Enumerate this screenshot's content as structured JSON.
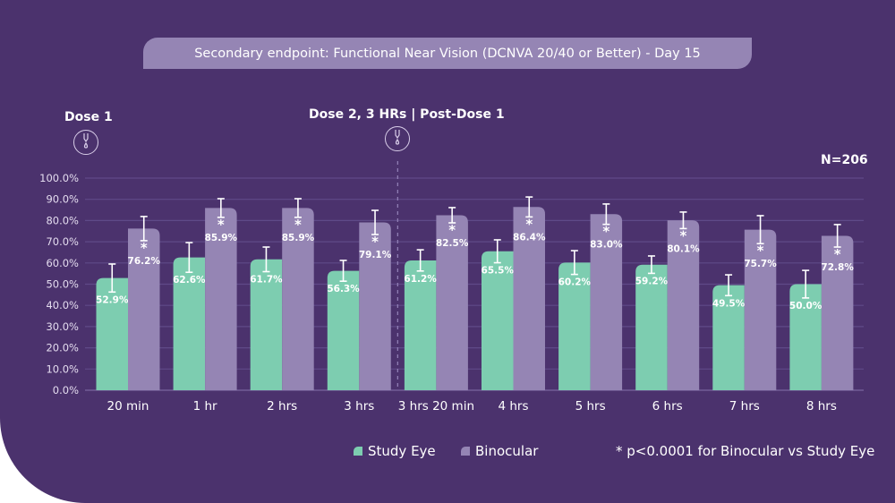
{
  "title": "Secondary endpoint: Functional Near Vision (DCNVA 20/40 or Better) - Day 15",
  "annotations": {
    "dose1": "Dose 1",
    "dose2": "Dose 2, 3 HRs | Post-Dose 1",
    "n": "N=206",
    "footnote": "* p<0.0001 for Binocular vs Study Eye",
    "significance_marker": "*"
  },
  "icons": [
    "eye-drop-icon",
    "eye-drop-icon"
  ],
  "colors": {
    "background": "#4b326d",
    "study_eye": "#7dcdb0",
    "binocular": "#9585b4",
    "title_bar": "#9585b4"
  },
  "chart_data": {
    "type": "bar",
    "categories": [
      "20 min",
      "1 hr",
      "2 hrs",
      "3 hrs",
      "3 hrs 20 min",
      "4 hrs",
      "5 hrs",
      "6 hrs",
      "7 hrs",
      "8 hrs"
    ],
    "series": [
      {
        "name": "Study Eye",
        "values": [
          52.9,
          62.6,
          61.7,
          56.3,
          61.2,
          65.5,
          60.2,
          59.2,
          49.5,
          50.0
        ],
        "error_upper": [
          59.5,
          69.6,
          67.5,
          61.2,
          66.2,
          70.9,
          65.8,
          63.3,
          54.4,
          56.5
        ],
        "labels": [
          "52.9%",
          "62.6%",
          "61.7%",
          "56.3%",
          "61.2%",
          "65.5%",
          "60.2%",
          "59.2%",
          "49.5%",
          "50.0%"
        ]
      },
      {
        "name": "Binocular",
        "values": [
          76.2,
          85.9,
          85.9,
          79.1,
          82.5,
          86.4,
          83.0,
          80.1,
          75.7,
          72.8
        ],
        "error_upper": [
          81.9,
          90.3,
          90.3,
          84.8,
          86.1,
          91.1,
          87.8,
          84.0,
          82.3,
          78.1
        ],
        "labels": [
          "76.2%",
          "85.9%",
          "85.9%",
          "79.1%",
          "82.5%",
          "86.4%",
          "83.0%",
          "80.1%",
          "75.7%",
          "72.8%"
        ]
      }
    ],
    "ylim": [
      0,
      100
    ],
    "yticks": [
      "0.0%",
      "10.0%",
      "20.0%",
      "30.0%",
      "40.0%",
      "50.0%",
      "60.0%",
      "70.0%",
      "80.0%",
      "90.0%",
      "100.0%"
    ],
    "grid": true,
    "divider_after_category": "3 hrs",
    "legend": "bottom"
  }
}
